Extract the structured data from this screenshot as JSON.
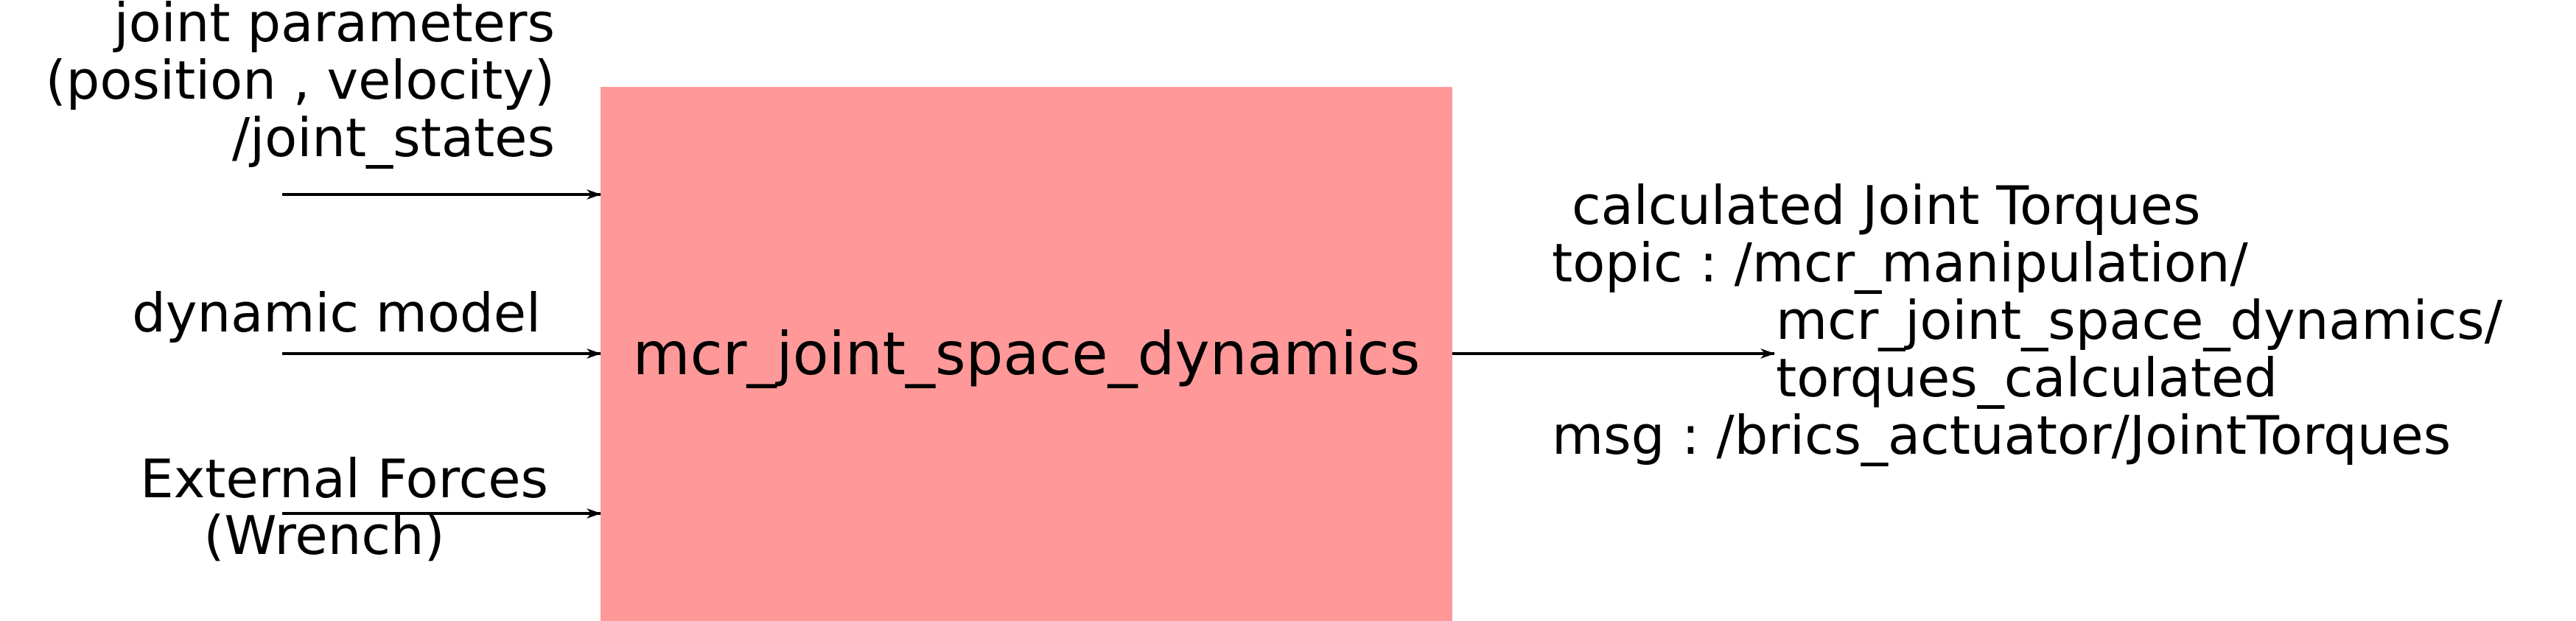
{
  "colors": {
    "block_fill": "#ff9999",
    "line": "#000000",
    "background": "#ffffff"
  },
  "block": {
    "label": "mcr_joint_space_dynamics"
  },
  "inputs": {
    "joint_states": {
      "line1": "joint parameters",
      "line2": "(position , velocity)",
      "line3": "/joint_states"
    },
    "dynamic_model": {
      "line1": "dynamic model"
    },
    "external_forces": {
      "line1": "External Forces",
      "line2": "(Wrench)"
    }
  },
  "output": {
    "line1": "calculated Joint Torques",
    "line2": "topic : /mcr_manipulation/",
    "line3": "mcr_joint_space_dynamics/",
    "line4": "torques_calculated",
    "line5": "msg : /brics_actuator/JointTorques"
  }
}
